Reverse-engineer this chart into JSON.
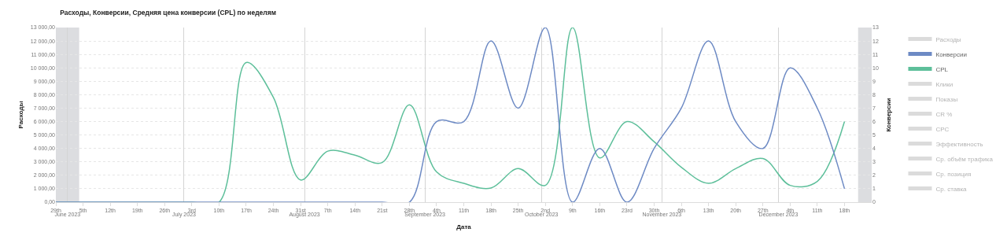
{
  "chart_data": {
    "type": "line",
    "title": "Расходы, Конверсии, Средняя цена конверсии (CPL) по неделям",
    "xlabel": "Дата",
    "ylabel": "Расходы",
    "y2label": "Конверсии",
    "x": [
      "2023-05-29",
      "2023-06-05",
      "2023-06-12",
      "2023-06-19",
      "2023-06-26",
      "2023-07-03",
      "2023-07-10",
      "2023-07-17",
      "2023-07-24",
      "2023-07-31",
      "2023-08-07",
      "2023-08-14",
      "2023-08-21",
      "2023-08-28",
      "2023-09-04",
      "2023-09-11",
      "2023-09-18",
      "2023-09-25",
      "2023-10-02",
      "2023-10-09",
      "2023-10-16",
      "2023-10-23",
      "2023-10-30",
      "2023-11-06",
      "2023-11-13",
      "2023-11-20",
      "2023-11-27",
      "2023-12-04",
      "2023-12-11",
      "2023-12-18"
    ],
    "series": [
      {
        "name": "Расходы",
        "color": "#b8b8b8",
        "values": [
          null,
          null,
          null,
          null,
          null,
          null,
          null,
          null,
          null,
          null,
          null,
          null,
          null,
          null,
          null,
          null,
          null,
          null,
          null,
          null,
          null,
          null,
          null,
          null,
          null,
          null,
          null,
          null,
          null,
          null
        ]
      },
      {
        "name": "Конверсии",
        "color": "#6d8ac4",
        "axis": "y2",
        "values": [
          0,
          0,
          0,
          0,
          0,
          0,
          0,
          0,
          0,
          0,
          0,
          0,
          0,
          0,
          6,
          6,
          12,
          7,
          13,
          0,
          4,
          0,
          4,
          7,
          12,
          6,
          4,
          10,
          7,
          1
        ]
      },
      {
        "name": "CPL",
        "color": "#5dbf9a",
        "values": [
          0,
          0,
          0,
          0,
          0,
          0,
          0,
          10400,
          7800,
          1650,
          3800,
          3500,
          2950,
          7250,
          2250,
          1400,
          1050,
          2500,
          1250,
          13000,
          3300,
          6000,
          4500,
          2600,
          1400,
          2500,
          3250,
          1250,
          1550,
          6000
        ]
      },
      {
        "name": "Клики",
        "color": "#b8b8b8",
        "values": [
          null,
          null,
          null,
          null,
          null,
          null,
          null,
          null,
          null,
          null,
          null,
          null,
          null,
          null,
          null,
          null,
          null,
          null,
          null,
          null,
          null,
          null,
          null,
          null,
          null,
          null,
          null,
          null,
          null,
          null
        ]
      },
      {
        "name": "Показы",
        "color": "#b8b8b8",
        "values": [
          null,
          null,
          null,
          null,
          null,
          null,
          null,
          null,
          null,
          null,
          null,
          null,
          null,
          null,
          null,
          null,
          null,
          null,
          null,
          null,
          null,
          null,
          null,
          null,
          null,
          null,
          null,
          null,
          null,
          null
        ]
      },
      {
        "name": "CR %",
        "color": "#b8b8b8",
        "values": [
          null,
          null,
          null,
          null,
          null,
          null,
          null,
          null,
          null,
          null,
          null,
          null,
          null,
          null,
          null,
          null,
          null,
          null,
          null,
          null,
          null,
          null,
          null,
          null,
          null,
          null,
          null,
          null,
          null,
          null
        ]
      },
      {
        "name": "CPC",
        "color": "#b8b8b8",
        "values": [
          null,
          null,
          null,
          null,
          null,
          null,
          null,
          null,
          null,
          null,
          null,
          null,
          null,
          null,
          null,
          null,
          null,
          null,
          null,
          null,
          null,
          null,
          null,
          null,
          null,
          null,
          null,
          null,
          null,
          null
        ]
      },
      {
        "name": "Эффективность",
        "color": "#b8b8b8",
        "values": [
          null,
          null,
          null,
          null,
          null,
          null,
          null,
          null,
          null,
          null,
          null,
          null,
          null,
          null,
          null,
          null,
          null,
          null,
          null,
          null,
          null,
          null,
          null,
          null,
          null,
          null,
          null,
          null,
          null,
          null
        ]
      },
      {
        "name": "Ср. объём трафика",
        "color": "#b8b8b8",
        "values": [
          null,
          null,
          null,
          null,
          null,
          null,
          null,
          null,
          null,
          null,
          null,
          null,
          null,
          null,
          null,
          null,
          null,
          null,
          null,
          null,
          null,
          null,
          null,
          null,
          null,
          null,
          null,
          null,
          null,
          null
        ]
      },
      {
        "name": "Ср. позиция",
        "color": "#b8b8b8",
        "values": [
          null,
          null,
          null,
          null,
          null,
          null,
          null,
          null,
          null,
          null,
          null,
          null,
          null,
          null,
          null,
          null,
          null,
          null,
          null,
          null,
          null,
          null,
          null,
          null,
          null,
          null,
          null,
          null,
          null,
          null
        ]
      },
      {
        "name": "Ср. ставка",
        "color": "#b8b8b8",
        "values": [
          null,
          null,
          null,
          null,
          null,
          null,
          null,
          null,
          null,
          null,
          null,
          null,
          null,
          null,
          null,
          null,
          null,
          null,
          null,
          null,
          null,
          null,
          null,
          null,
          null,
          null,
          null,
          null,
          null,
          null
        ]
      }
    ],
    "xlim": [
      "2023-05-29",
      "2023-12-25"
    ],
    "xticks": [
      {
        "value": "2023-05-29",
        "label": "29th"
      },
      {
        "value": "2023-06-05",
        "label": "5th"
      },
      {
        "value": "2023-06-12",
        "label": "12th"
      },
      {
        "value": "2023-06-19",
        "label": "19th"
      },
      {
        "value": "2023-06-26",
        "label": "26th"
      },
      {
        "value": "2023-07-03",
        "label": "3rd"
      },
      {
        "value": "2023-07-10",
        "label": "10th"
      },
      {
        "value": "2023-07-17",
        "label": "17th"
      },
      {
        "value": "2023-07-24",
        "label": "24th"
      },
      {
        "value": "2023-07-31",
        "label": "31st"
      },
      {
        "value": "2023-08-07",
        "label": "7th"
      },
      {
        "value": "2023-08-14",
        "label": "14th"
      },
      {
        "value": "2023-08-21",
        "label": "21st"
      },
      {
        "value": "2023-08-28",
        "label": "28th"
      },
      {
        "value": "2023-09-04",
        "label": "4th"
      },
      {
        "value": "2023-09-11",
        "label": "11th"
      },
      {
        "value": "2023-09-18",
        "label": "18th"
      },
      {
        "value": "2023-09-25",
        "label": "25th"
      },
      {
        "value": "2023-10-02",
        "label": "2nd"
      },
      {
        "value": "2023-10-09",
        "label": "9th"
      },
      {
        "value": "2023-10-16",
        "label": "16th"
      },
      {
        "value": "2023-10-23",
        "label": "23rd"
      },
      {
        "value": "2023-10-30",
        "label": "30th"
      },
      {
        "value": "2023-11-06",
        "label": "6th"
      },
      {
        "value": "2023-11-13",
        "label": "13th"
      },
      {
        "value": "2023-11-20",
        "label": "20th"
      },
      {
        "value": "2023-11-27",
        "label": "27th"
      },
      {
        "value": "2023-12-04",
        "label": "4th"
      },
      {
        "value": "2023-12-11",
        "label": "11th"
      },
      {
        "value": "2023-12-18",
        "label": "18th"
      }
    ],
    "x2lim": [
      "2023-05-29",
      "2023-12-25"
    ],
    "x2ticks": [
      {
        "value": "2023-06-01",
        "label": "June 2023"
      },
      {
        "value": "2023-07-01",
        "label": "July 2023"
      },
      {
        "value": "2023-08-01",
        "label": "August 2023"
      },
      {
        "value": "2023-09-01",
        "label": "September 2023"
      },
      {
        "value": "2023-10-01",
        "label": "October 2023"
      },
      {
        "value": "2023-11-01",
        "label": "November 2023"
      },
      {
        "value": "2023-12-01",
        "label": "December 2023"
      }
    ],
    "ylim": [
      0,
      13000
    ],
    "yticks": [
      {
        "value": 0,
        "label": "0,00"
      },
      {
        "value": 1000,
        "label": "1 000,00"
      },
      {
        "value": 2000,
        "label": "2 000,00"
      },
      {
        "value": 3000,
        "label": "3 000,00"
      },
      {
        "value": 4000,
        "label": "4 000,00"
      },
      {
        "value": 5000,
        "label": "5 000,00"
      },
      {
        "value": 6000,
        "label": "6 000,00"
      },
      {
        "value": 7000,
        "label": "7 000,00"
      },
      {
        "value": 8000,
        "label": "8 000,00"
      },
      {
        "value": 9000,
        "label": "9 000,00"
      },
      {
        "value": 10000,
        "label": "10 000,00"
      },
      {
        "value": 11000,
        "label": "11 000,00"
      },
      {
        "value": 12000,
        "label": "12 000,00"
      },
      {
        "value": 13000,
        "label": "13 000,00"
      }
    ],
    "y2lim": [
      0,
      13
    ],
    "y2ticks": [
      0,
      1,
      2,
      3,
      4,
      5,
      6,
      7,
      8,
      9,
      10,
      11,
      12,
      13
    ],
    "bands": [
      {
        "axis": "x",
        "from": "2023-05-29",
        "to": "2023-06-04",
        "color": "#dcdde0"
      },
      {
        "axis": "x",
        "from": "2023-12-21T12:00",
        "to": "2023-12-25",
        "color": "#dcdde0"
      }
    ],
    "grid": true,
    "legend": "top right"
  }
}
